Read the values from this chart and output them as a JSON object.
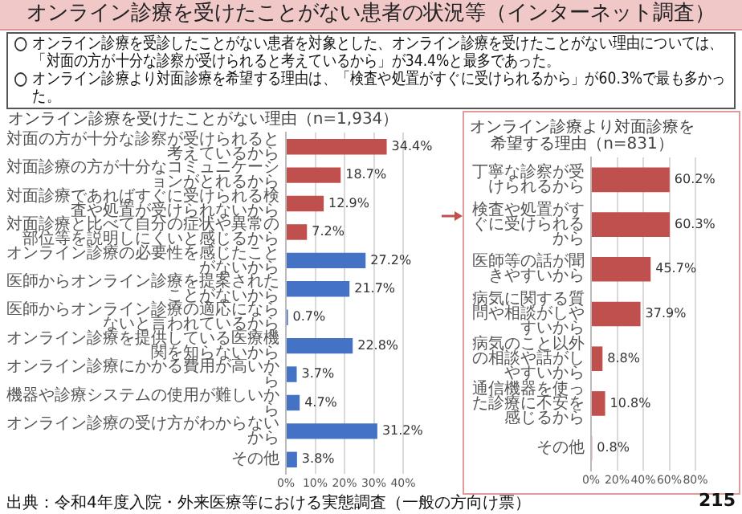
{
  "chart_data": [
    {
      "type": "other",
      "title": "オンライン診療を受けたことがない患者の状況等（インターネット調査）",
      "annotations": [
        "オンライン診療を受診したことがない患者を対象とした、オンライン診療を受けたことがない理由については、「対面の方が十分な診察が受けられると考えているから」が34.4%と最多であった。",
        "オンライン診療より対面診療を希望する理由は、「検査や処置がすぐに受けられるから」が60.3%で最も多かった。"
      ]
    },
    {
      "type": "bar",
      "orientation": "horizontal",
      "title": "オンライン診療を受けたことがない理由（n=1,934）",
      "categories": [
        "対面の方が十分な診察が受けられると考えているから",
        "対面診療の方が十分なコミュニケーションがとれるから",
        "対面診療であればすぐに受けられる検査や処置が受けられないから",
        "対面診療と比べて自分の症状や異常の部位等を説明しにくいと感じるから",
        "オンライン診療の必要性を感じたことがないから",
        "医師からオンライン診療を提案されたことがないから",
        "医師からオンライン診療の適応にならないと言われているから",
        "オンライン診療を提供している医療機関を知らないから",
        "オンライン診療にかかる費用が高いから",
        "機器や診療システムの使用が難しいから",
        "オンライン診療の受け方がわからないから",
        "その他"
      ],
      "values": [
        34.4,
        18.7,
        12.9,
        7.2,
        27.2,
        21.7,
        0.7,
        22.8,
        3.7,
        4.7,
        31.2,
        3.8
      ],
      "value_labels": [
        "34.4%",
        "18.7%",
        "12.9%",
        "7.2%",
        "27.2%",
        "21.7%",
        "0.7%",
        "22.8%",
        "3.7%",
        "4.7%",
        "31.2%",
        "3.8%"
      ],
      "colors": [
        "#c0504d",
        "#c0504d",
        "#c0504d",
        "#c0504d",
        "#4472c4",
        "#4472c4",
        "#4472c4",
        "#4472c4",
        "#4472c4",
        "#4472c4",
        "#4472c4",
        "#4472c4"
      ],
      "xlim": [
        0,
        40
      ],
      "xticks": [
        {
          "value": 0,
          "label": "0%"
        },
        {
          "value": 10,
          "label": "10%"
        },
        {
          "value": 20,
          "label": "20%"
        },
        {
          "value": 30,
          "label": "30%"
        },
        {
          "value": 40,
          "label": "40%"
        }
      ],
      "grid": "x",
      "annotations": [
        "出典：令和4年度入院・外来医療等における実態調査（一般の方向け票）"
      ]
    },
    {
      "type": "bar",
      "orientation": "horizontal",
      "title": "オンライン診療より対面診療を希望する理由（n=831）",
      "categories": [
        "丁寧な診察が受けられるから",
        "検査や処置がすぐに受けられるから",
        "医師等の話が聞きやすいから",
        "病気に関する質問や相談がしやすいから",
        "病気のこと以外の相談や話がしやすいから",
        "通信機器を使った診療に不安を感じるから",
        "その他"
      ],
      "values": [
        60.2,
        60.3,
        45.7,
        37.9,
        8.8,
        10.8,
        0.8
      ],
      "value_labels": [
        "60.2%",
        "60.3%",
        "45.7%",
        "37.9%",
        "8.8%",
        "10.8%",
        "0.8%"
      ],
      "color": "#c0504d",
      "xlim": [
        0,
        80
      ],
      "xticks": [
        {
          "value": 0,
          "label": "0%"
        },
        {
          "value": 20,
          "label": "20%"
        },
        {
          "value": 40,
          "label": "40%"
        },
        {
          "value": 60,
          "label": "60%"
        },
        {
          "value": 80,
          "label": "80%"
        }
      ],
      "grid": "x",
      "annotations": [
        "215"
      ]
    }
  ]
}
